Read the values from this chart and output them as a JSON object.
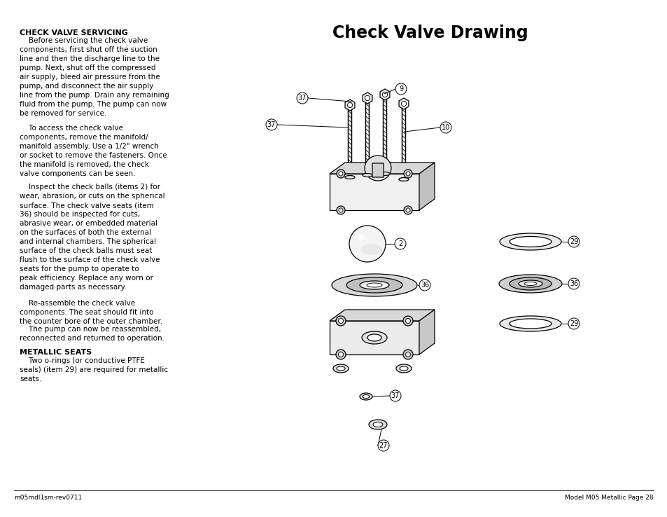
{
  "title": "Check Valve Drawing",
  "bg_color": "#ffffff",
  "left_heading1": "CHECK VALVE SERVICING",
  "left_para1_indent": "    Before servicing the check valve\ncomponents, first shut off the suction\nline and then the discharge line to the\npump. Next, shut off the compressed\nair supply, bleed air pressure from the\npump, and disconnect the air supply\nline from the pump. Drain any remaining\nfluid from the pump. The pump can now\nbe removed for service.",
  "left_para2_indent": "    To access the check valve\ncomponents, remove the manifold/\nmanifold assembly. Use a 1/2\" wrench\nor socket to remove the fasteners. Once\nthe manifold is removed, the check\nvalve components can be seen.",
  "left_para3_indent": "    Inspect the check balls (items 2) for\nwear, abrasion, or cuts on the spherical\nsurface. The check valve seats (item\n36) should be inspected for cuts,\nabrasive wear, or embedded material\non the surfaces of both the external\nand internal chambers. The spherical\nsurface of the check balls must seat\nflush to the surface of the check valve\nseats for the pump to operate to\npeak efficiency. Replace any worn or\ndamaged parts as necessary.",
  "left_para4_indent": "    Re-assemble the check valve\ncomponents. The seat should fit into\nthe counter bore of the outer chamber.",
  "left_para5_indent": "    The pump can now be reassembled,\nreconnected and returned to operation.",
  "left_heading2": "METALLIC SEATS",
  "left_para6_indent": "    Two o-rings (or conductive PTFE\nseals) (item 29) are required for metallic\nseats.",
  "footer_left": "m05mdl1sm-rev0711",
  "footer_right": "Model M05 Metallic Page 28",
  "text_color": "#000000",
  "font_body_size": 7.5,
  "font_heading_size": 8.0,
  "title_fontsize": 17
}
